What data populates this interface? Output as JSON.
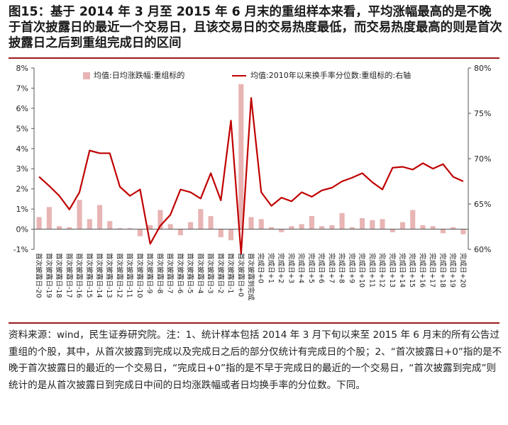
{
  "header": {
    "title": "图15：基于 2014 年 3 月至 2015 年 6 月末的重组样本来看，平均涨幅最高的是不晚于首次披露日的最近一个交易日，且该交易日的交易热度最低，而交易热度最高的则是首次披露日之后到重组完成日的区间"
  },
  "footer": {
    "source": "资料来源：wind，民生证券研究院。注：1、统计样本包括 2014 年 3 月下旬以来至 2015 年 6 月末的所有公告过重组的个股，其中，从首次披露到完成以及完成日之后的部分仅统计有完成日的个股；2、“首次披露日+0”指的是不晚于首次披露日的最近的一个交易日，“完成日+0”指的是不早于完成日的最近的一个交易日，“首次披露到完成”则统计的是从首次披露日到完成日中间的日均涨跌幅或者日均换手率的分位数。下同。"
  },
  "colors": {
    "bar": "#e8b4b4",
    "line": "#c00000",
    "rule": "#9b1b1b"
  },
  "chart_data": {
    "type": "bar+line",
    "legend": {
      "position": "top",
      "bar_label": "均值:日均涨跌幅:重组标的",
      "line_label": "均值:2010年以来换手率分位数:重组标的:右轴"
    },
    "left_axis": {
      "min": -1,
      "max": 8,
      "ticks": [
        -1,
        0,
        1,
        2,
        3,
        4,
        5,
        6,
        7,
        8
      ],
      "tick_labels": [
        "-1%",
        "0%",
        "1%",
        "2%",
        "3%",
        "4%",
        "5%",
        "6%",
        "7%",
        "8%"
      ]
    },
    "right_axis": {
      "min": 60,
      "max": 80,
      "ticks": [
        60,
        65,
        70,
        75,
        80
      ],
      "tick_labels": [
        "60%",
        "65%",
        "70%",
        "75%",
        "80%"
      ]
    },
    "categories": [
      "首次披露日-20",
      "首次披露日-19",
      "首次披露日-18",
      "首次披露日-17",
      "首次披露日-16",
      "首次披露日-15",
      "首次披露日-14",
      "首次披露日-13",
      "首次披露日-12",
      "首次披露日-11",
      "首次披露日-10",
      "首次披露日-9",
      "首次披露日-8",
      "首次披露日-7",
      "首次披露日-6",
      "首次披露日-5",
      "首次披露日-4",
      "首次披露日-3",
      "首次披露日-2",
      "首次披露日-1",
      "首次披露日+0",
      "首次披露到完成",
      "完成日+0",
      "完成日+1",
      "完成日+2",
      "完成日+3",
      "完成日+4",
      "完成日+5",
      "完成日+6",
      "完成日+7",
      "完成日+8",
      "完成日+9",
      "完成日+10",
      "完成日+11",
      "完成日+12",
      "完成日+13",
      "完成日+14",
      "完成日+15",
      "完成日+16",
      "完成日+17",
      "完成日+18",
      "完成日+19",
      "完成日+20"
    ],
    "series": [
      {
        "name": "均值:日均涨跌幅:重组标的",
        "type": "bar",
        "axis": "left",
        "values": [
          0.6,
          1.1,
          0.15,
          0.1,
          1.45,
          0.5,
          1.2,
          0.4,
          0.05,
          0.05,
          -0.35,
          0.2,
          0.95,
          0.25,
          -0.3,
          0.35,
          1.0,
          0.65,
          -0.4,
          -0.55,
          7.2,
          0.6,
          0.5,
          0.1,
          -0.15,
          0.15,
          0.25,
          0.65,
          0.15,
          0.2,
          0.8,
          0.1,
          0.55,
          0.45,
          0.5,
          -0.15,
          0.35,
          0.95,
          0.2,
          0.15,
          -0.2,
          0.1,
          -0.25
        ]
      },
      {
        "name": "均值:2010年以来换手率分位数:重组标的:右轴",
        "type": "line",
        "axis": "right",
        "values": [
          68.0,
          67.0,
          65.9,
          64.4,
          66.3,
          70.9,
          70.6,
          70.6,
          66.9,
          65.9,
          66.6,
          60.6,
          62.6,
          63.8,
          66.6,
          66.3,
          65.6,
          68.4,
          65.4,
          74.2,
          59.5,
          76.7,
          66.3,
          64.8,
          65.7,
          65.3,
          66.3,
          65.8,
          66.5,
          66.8,
          67.5,
          67.9,
          68.4,
          67.4,
          66.6,
          69.0,
          69.1,
          68.8,
          69.5,
          68.9,
          69.4,
          68.0,
          67.5
        ]
      }
    ]
  }
}
